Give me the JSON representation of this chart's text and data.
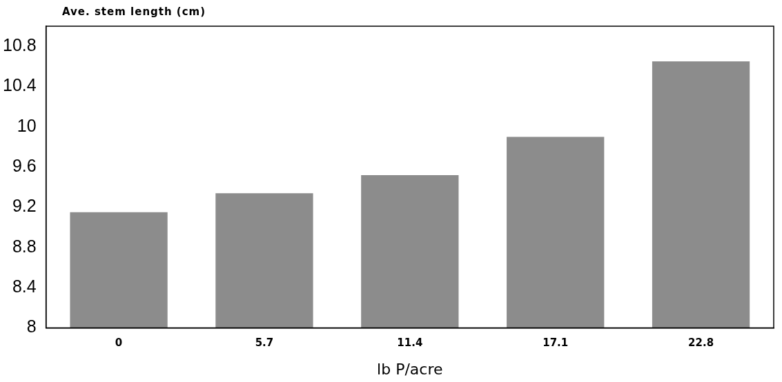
{
  "chart_data": {
    "type": "bar",
    "ylabel": "Ave. stem length (cm)",
    "xlabel": "lb P/acre",
    "categories": [
      "0",
      "5.7",
      "11.4",
      "17.1",
      "22.8"
    ],
    "values": [
      9.15,
      9.34,
      9.52,
      9.9,
      10.65
    ],
    "color": "#8c8c8c",
    "ylim": [
      8,
      11
    ],
    "yticks": [
      8,
      8.4,
      8.8,
      9.2,
      9.6,
      10,
      10.4,
      10.8
    ],
    "grid": false,
    "legend": false
  }
}
